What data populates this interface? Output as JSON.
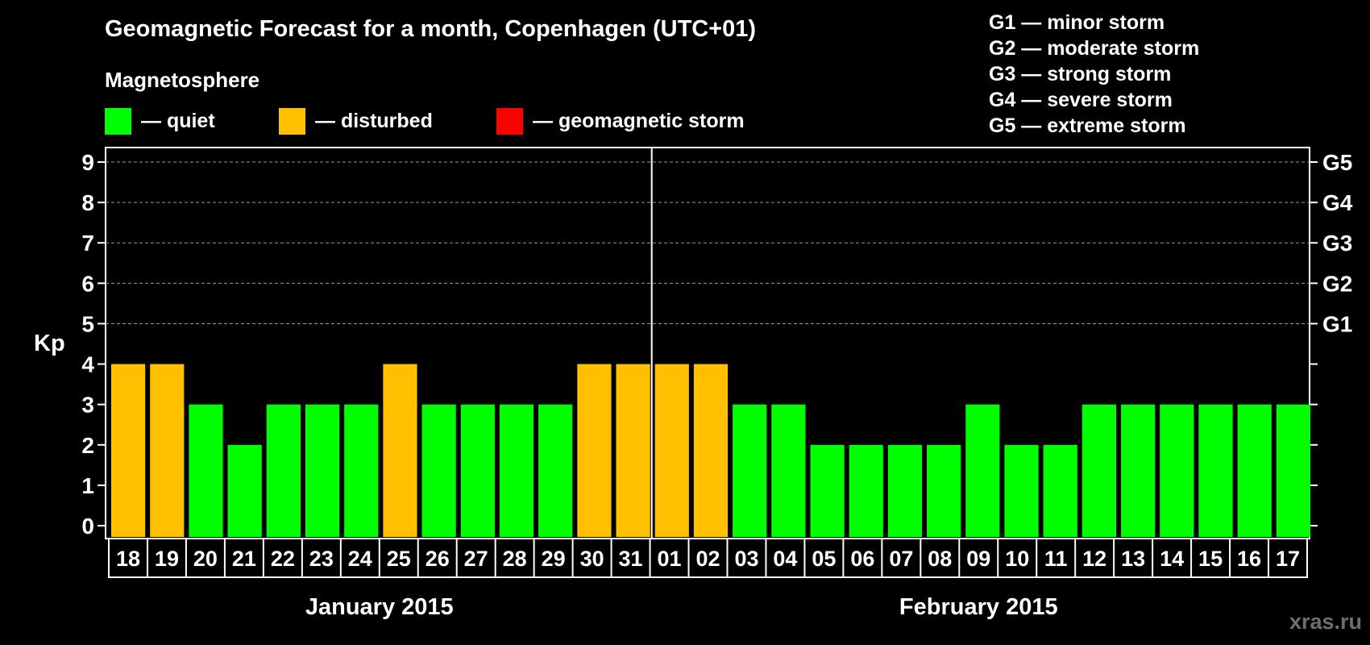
{
  "chart_data": {
    "type": "bar",
    "title": "Geomagnetic Forecast for a month, Copenhagen (UTC+01)",
    "ylabel": "Kp",
    "ylim": [
      0,
      9
    ],
    "yticks": [
      "0",
      "1",
      "2",
      "3",
      "4",
      "5",
      "6",
      "7",
      "8",
      "9"
    ],
    "right_axis_labels": [
      {
        "value": 5,
        "label": "G1"
      },
      {
        "value": 6,
        "label": "G2"
      },
      {
        "value": 7,
        "label": "G3"
      },
      {
        "value": 8,
        "label": "G4"
      },
      {
        "value": 9,
        "label": "G5"
      }
    ],
    "grid": "dashed horizontal at Kp 5-9",
    "categories": [
      "18",
      "19",
      "20",
      "21",
      "22",
      "23",
      "24",
      "25",
      "26",
      "27",
      "28",
      "29",
      "30",
      "31",
      "01",
      "02",
      "03",
      "04",
      "05",
      "06",
      "07",
      "08",
      "09",
      "10",
      "11",
      "12",
      "13",
      "14",
      "15",
      "16",
      "17"
    ],
    "values": [
      4,
      4,
      3,
      2,
      3,
      3,
      3,
      4,
      3,
      3,
      3,
      3,
      4,
      4,
      4,
      4,
      3,
      3,
      2,
      2,
      2,
      2,
      3,
      2,
      2,
      3,
      3,
      3,
      3,
      3,
      3
    ],
    "status": [
      "disturbed",
      "disturbed",
      "quiet",
      "quiet",
      "quiet",
      "quiet",
      "quiet",
      "disturbed",
      "quiet",
      "quiet",
      "quiet",
      "quiet",
      "disturbed",
      "disturbed",
      "disturbed",
      "disturbed",
      "quiet",
      "quiet",
      "quiet",
      "quiet",
      "quiet",
      "quiet",
      "quiet",
      "quiet",
      "quiet",
      "quiet",
      "quiet",
      "quiet",
      "quiet",
      "quiet",
      "quiet"
    ],
    "months": [
      {
        "label": "January 2015",
        "days": 14
      },
      {
        "label": "February 2015",
        "days": 17
      }
    ]
  },
  "legend": {
    "title": "Magnetosphere",
    "items": [
      {
        "label": "— quiet",
        "color": "#00ff00"
      },
      {
        "label": "— disturbed",
        "color": "#ffc000"
      },
      {
        "label": "— geomagnetic storm",
        "color": "#ff0000"
      }
    ]
  },
  "storm_scale": [
    "G1 — minor storm",
    "G2 — moderate storm",
    "G3 — strong storm",
    "G4 — severe storm",
    "G5 — extreme storm"
  ],
  "colors": {
    "quiet": "#00ff00",
    "disturbed": "#ffc000",
    "storm": "#ff0000"
  },
  "watermark": "xras.ru"
}
